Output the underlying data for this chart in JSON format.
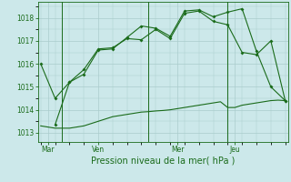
{
  "background_color": "#cce8ea",
  "grid_color": "#aacccc",
  "line_color": "#1a6b1a",
  "title": "Pression niveau de la mer( hPa )",
  "ylabel_ticks": [
    1013,
    1014,
    1015,
    1016,
    1017,
    1018
  ],
  "x_tick_labels": [
    "Mar",
    "Ven",
    "Mer",
    "Jeu"
  ],
  "x_tick_positions": [
    0.5,
    4.0,
    9.5,
    13.5
  ],
  "ylim": [
    1012.6,
    1018.7
  ],
  "xlim": [
    -0.2,
    17.2
  ],
  "line1_smooth": {
    "x": [
      0,
      0.5,
      1,
      1.5,
      2,
      2.5,
      3,
      3.5,
      4,
      4.5,
      5,
      5.5,
      6,
      6.5,
      7,
      7.5,
      8,
      8.5,
      9,
      9.5,
      10,
      10.5,
      11,
      11.5,
      12,
      12.5,
      13,
      13.5,
      14,
      14.5,
      15,
      15.5,
      16,
      16.5,
      17
    ],
    "y": [
      1013.3,
      1013.25,
      1013.2,
      1013.2,
      1013.2,
      1013.25,
      1013.3,
      1013.4,
      1013.5,
      1013.6,
      1013.7,
      1013.75,
      1013.8,
      1013.85,
      1013.9,
      1013.92,
      1013.95,
      1013.97,
      1014.0,
      1014.05,
      1014.1,
      1014.15,
      1014.2,
      1014.25,
      1014.3,
      1014.35,
      1014.1,
      1014.1,
      1014.2,
      1014.25,
      1014.3,
      1014.35,
      1014.4,
      1014.42,
      1014.4
    ]
  },
  "line2": {
    "x": [
      0,
      1,
      2,
      3,
      4,
      5,
      6,
      7,
      8,
      9,
      10,
      11,
      12,
      13,
      14,
      15,
      16,
      17
    ],
    "y": [
      1016.0,
      1014.5,
      1015.2,
      1015.75,
      1016.65,
      1016.7,
      1017.1,
      1017.05,
      1017.5,
      1017.1,
      1018.2,
      1018.3,
      1017.85,
      1017.7,
      1016.5,
      1016.4,
      1017.0,
      1014.4
    ]
  },
  "line3": {
    "x": [
      1,
      2,
      3,
      4,
      5,
      6,
      7,
      8,
      9,
      10,
      11,
      12,
      13,
      14,
      15,
      16,
      17
    ],
    "y": [
      1013.35,
      1015.2,
      1015.55,
      1016.6,
      1016.65,
      1017.15,
      1017.65,
      1017.55,
      1017.2,
      1018.3,
      1018.35,
      1018.05,
      1018.25,
      1018.4,
      1016.55,
      1015.0,
      1014.4
    ]
  },
  "vlines_x": [
    1.5,
    7.5,
    13.0
  ]
}
